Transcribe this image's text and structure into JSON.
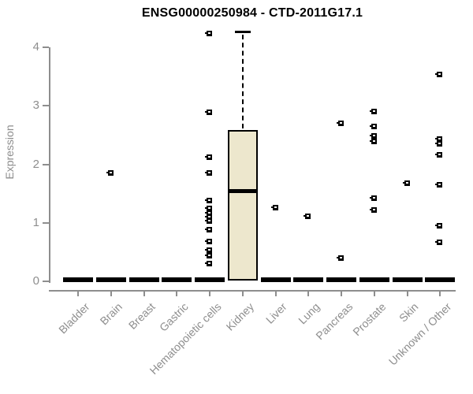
{
  "chart_data": {
    "type": "boxplot",
    "title": "ENSG00000250984 - CTD-2011G17.1",
    "ylabel": "Expression",
    "xlabel": "",
    "ylim": [
      0,
      4.3
    ],
    "yticks": [
      0,
      1,
      2,
      3,
      4
    ],
    "grid": false,
    "legend": "none",
    "categories": [
      "Bladder",
      "Brain",
      "Breast",
      "Gastric",
      "Hematopoietic cells",
      "Kidney",
      "Liver",
      "Lung",
      "Pancreas",
      "Prostate",
      "Skin",
      "Unknown / Other"
    ],
    "boxes": [
      {
        "category": "Bladder",
        "q1": 0,
        "median": 0,
        "q3": 0,
        "whisker_low": 0,
        "whisker_high": 0,
        "outliers": []
      },
      {
        "category": "Brain",
        "q1": 0,
        "median": 0,
        "q3": 0,
        "whisker_low": 0,
        "whisker_high": 0,
        "outliers": [
          1.85
        ]
      },
      {
        "category": "Breast",
        "q1": 0,
        "median": 0,
        "q3": 0,
        "whisker_low": 0,
        "whisker_high": 0,
        "outliers": []
      },
      {
        "category": "Gastric",
        "q1": 0,
        "median": 0,
        "q3": 0,
        "whisker_low": 0,
        "whisker_high": 0,
        "outliers": []
      },
      {
        "category": "Hematopoietic cells",
        "q1": 0,
        "median": 0,
        "q3": 0,
        "whisker_low": 0,
        "whisker_high": 0,
        "outliers": [
          4.23,
          2.88,
          2.11,
          1.84,
          1.37,
          1.24,
          1.16,
          1.09,
          1.02,
          0.88,
          0.67,
          0.53,
          0.43,
          0.3
        ]
      },
      {
        "category": "Kidney",
        "q1": 0.02,
        "median": 1.55,
        "q3": 2.58,
        "whisker_low": 0.02,
        "whisker_high": 4.25,
        "outliers": []
      },
      {
        "category": "Liver",
        "q1": 0,
        "median": 0,
        "q3": 0,
        "whisker_low": 0,
        "whisker_high": 0,
        "outliers": [
          1.25
        ]
      },
      {
        "category": "Lung",
        "q1": 0,
        "median": 0,
        "q3": 0,
        "whisker_low": 0,
        "whisker_high": 0,
        "outliers": [
          1.1
        ]
      },
      {
        "category": "Pancreas",
        "q1": 0,
        "median": 0,
        "q3": 0,
        "whisker_low": 0,
        "whisker_high": 0,
        "outliers": [
          2.69,
          0.39
        ]
      },
      {
        "category": "Prostate",
        "q1": 0,
        "median": 0,
        "q3": 0,
        "whisker_low": 0,
        "whisker_high": 0,
        "outliers": [
          2.9,
          2.64,
          2.48,
          2.38,
          1.41,
          1.21
        ]
      },
      {
        "category": "Skin",
        "q1": 0,
        "median": 0,
        "q3": 0,
        "whisker_low": 0,
        "whisker_high": 0,
        "outliers": [
          1.67
        ]
      },
      {
        "category": "Unknown / Other",
        "q1": 0,
        "median": 0,
        "q3": 0,
        "whisker_low": 0,
        "whisker_high": 0,
        "outliers": [
          3.53,
          2.42,
          2.34,
          2.15,
          1.64,
          0.94,
          0.66
        ]
      }
    ]
  },
  "colors": {
    "box_fill": "#EDE7CD",
    "box_border": "#000000",
    "data_color": "#000000",
    "axis": "#8E8E8E",
    "tick_label": "#8E8E8E",
    "title": "#000000",
    "background": "#FFFFFF"
  }
}
